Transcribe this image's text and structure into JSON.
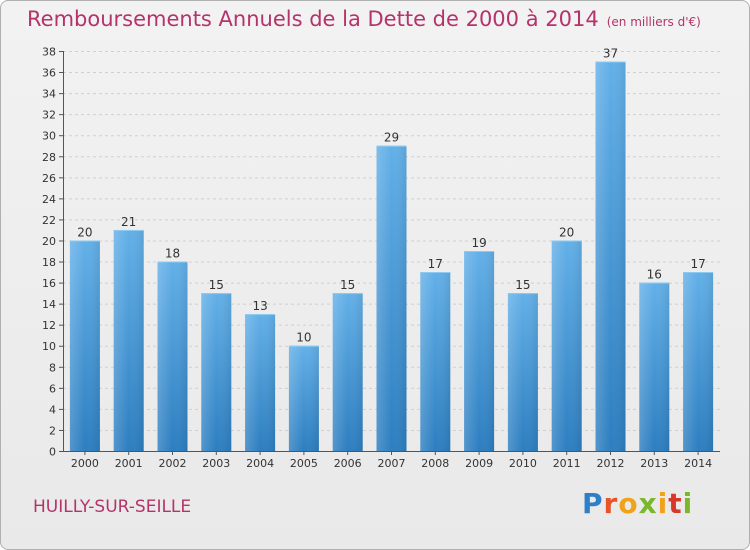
{
  "chart_data": {
    "type": "bar",
    "title": "Remboursements Annuels de la Dette de 2000 à 2014",
    "unit_note": "(en milliers d'€)",
    "categories": [
      "2000",
      "2001",
      "2002",
      "2003",
      "2004",
      "2005",
      "2006",
      "2007",
      "2008",
      "2009",
      "2010",
      "2011",
      "2012",
      "2013",
      "2014"
    ],
    "values": [
      20,
      21,
      18,
      15,
      13,
      10,
      15,
      29,
      17,
      19,
      15,
      20,
      37,
      16,
      17
    ],
    "xlabel": "",
    "ylabel": "",
    "ylim": [
      0,
      38
    ],
    "yticks": [
      0,
      2,
      4,
      6,
      8,
      10,
      12,
      14,
      16,
      18,
      20,
      22,
      24,
      26,
      28,
      30,
      32,
      34,
      36,
      38
    ],
    "grid": true,
    "bar_color_top": "#63b0e8",
    "bar_color_bottom": "#2d7ec0"
  },
  "commune": "HUILLY-SUR-SEILLE",
  "logo": {
    "text": "Proxiti",
    "colors": [
      "#2f7fc8",
      "#e8542a",
      "#f0a21a",
      "#7ab82a",
      "#d8382a"
    ]
  },
  "colors": {
    "title": "#b5336b",
    "grid": "#d0d0d0"
  }
}
